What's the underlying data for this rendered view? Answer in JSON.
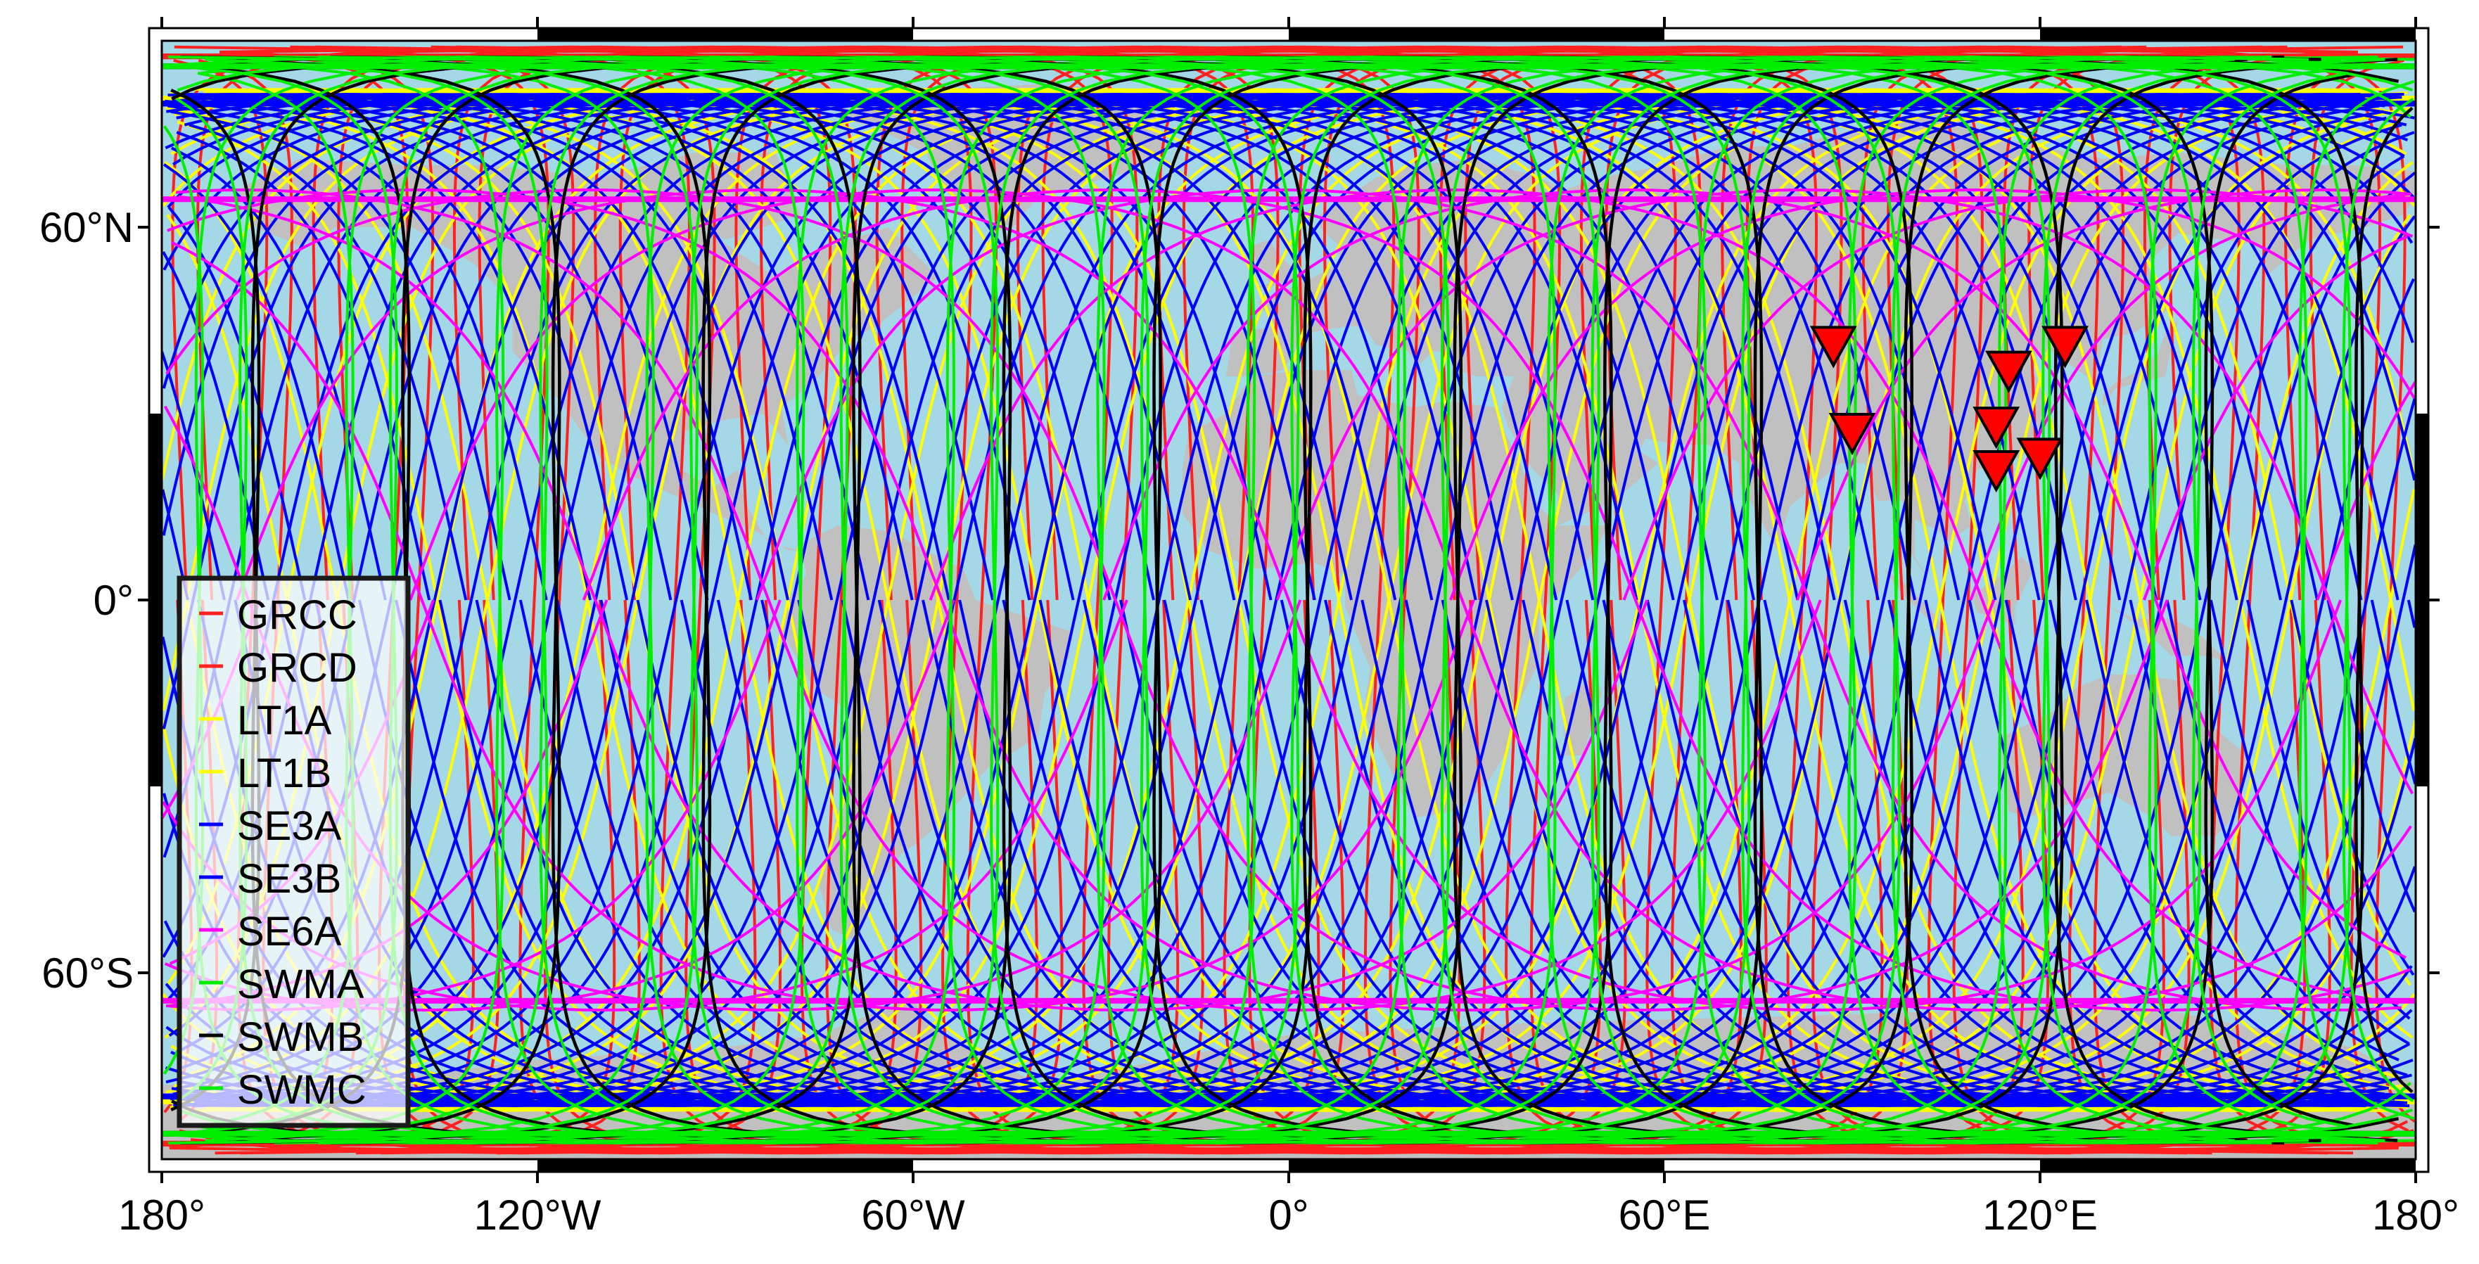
{
  "map": {
    "projection": "equirectangular",
    "lon_range": [
      -180,
      180
    ],
    "lat_range": [
      -90,
      90
    ],
    "ocean_color": "#a4d8e6",
    "land_color": "#c0c0c0",
    "frame_color": "#000000",
    "x_ticks": [
      {
        "lon": -180,
        "label": "180°"
      },
      {
        "lon": -120,
        "label": "120°W"
      },
      {
        "lon": -60,
        "label": "60°W"
      },
      {
        "lon": 0,
        "label": "0°"
      },
      {
        "lon": 60,
        "label": "60°E"
      },
      {
        "lon": 120,
        "label": "120°E"
      },
      {
        "lon": 180,
        "label": "180°"
      }
    ],
    "y_ticks": [
      {
        "lat": 60,
        "label": "60°N"
      },
      {
        "lat": 0,
        "label": "0°"
      },
      {
        "lat": -60,
        "label": "60°S"
      }
    ]
  },
  "legend": {
    "placement": "left",
    "items": [
      {
        "label": "GRCC",
        "color": "#ff2020"
      },
      {
        "label": "GRCD",
        "color": "#ff2020"
      },
      {
        "label": "LT1A",
        "color": "#ffff00"
      },
      {
        "label": "LT1B",
        "color": "#ffff00"
      },
      {
        "label": "SE3A",
        "color": "#0000ff"
      },
      {
        "label": "SE3B",
        "color": "#0000ff"
      },
      {
        "label": "SE6A",
        "color": "#ff00ff"
      },
      {
        "label": "SWMA",
        "color": "#00ee00"
      },
      {
        "label": "SWMB",
        "color": "#000000"
      },
      {
        "label": "SWMC",
        "color": "#00ee00"
      }
    ]
  },
  "chart_data": {
    "type": "map",
    "tracks": [
      {
        "name": "GRCC",
        "color": "#ff2020",
        "inclination": 89,
        "passes": 16,
        "lon_offset": -176
      },
      {
        "name": "GRCD",
        "color": "#ff2020",
        "inclination": 89,
        "passes": 16,
        "lon_offset": -172
      },
      {
        "name": "LT1A",
        "color": "#ffff00",
        "inclination": 97.8,
        "passes": 15,
        "lon_offset": -160
      },
      {
        "name": "LT1B",
        "color": "#ffff00",
        "inclination": 97.8,
        "passes": 15,
        "lon_offset": -152
      },
      {
        "name": "SE3A",
        "color": "#0000ff",
        "inclination": 98.6,
        "passes": 28,
        "lon_offset": -170
      },
      {
        "name": "SE3B",
        "color": "#0000ff",
        "inclination": 98.6,
        "passes": 28,
        "lon_offset": -163
      },
      {
        "name": "SE6A",
        "color": "#ff00ff",
        "inclination": 66,
        "passes": 13,
        "lon_offset": -168
      },
      {
        "name": "SWMA",
        "color": "#00ee00",
        "inclination": 87.4,
        "passes": 15,
        "lon_offset": -150
      },
      {
        "name": "SWMB",
        "color": "#000000",
        "inclination": 87.4,
        "passes": 15,
        "lon_offset": -165
      },
      {
        "name": "SWMC",
        "color": "#00ee00",
        "inclination": 87.4,
        "passes": 15,
        "lon_offset": -143
      }
    ],
    "markers": [
      {
        "lon": 87,
        "lat": 41,
        "color": "#ff0000"
      },
      {
        "lon": 90,
        "lat": 27,
        "color": "#ff0000"
      },
      {
        "lon": 115,
        "lat": 37,
        "color": "#ff0000"
      },
      {
        "lon": 113,
        "lat": 28,
        "color": "#ff0000"
      },
      {
        "lon": 113,
        "lat": 21,
        "color": "#ff0000"
      },
      {
        "lon": 120,
        "lat": 23,
        "color": "#ff0000"
      },
      {
        "lon": 124,
        "lat": 41,
        "color": "#ff0000"
      }
    ],
    "land": [
      [
        [
          -168,
          66
        ],
        [
          -158,
          71
        ],
        [
          -140,
          70
        ],
        [
          -128,
          70
        ],
        [
          -110,
          68
        ],
        [
          -95,
          72
        ],
        [
          -82,
          72
        ],
        [
          -78,
          62
        ],
        [
          -90,
          58
        ],
        [
          -94,
          60
        ],
        [
          -82,
          52
        ],
        [
          -76,
          56
        ],
        [
          -64,
          60
        ],
        [
          -56,
          52
        ],
        [
          -66,
          44
        ],
        [
          -70,
          42
        ],
        [
          -76,
          35
        ],
        [
          -81,
          31
        ],
        [
          -80,
          25
        ],
        [
          -84,
          30
        ],
        [
          -90,
          29
        ],
        [
          -97,
          27
        ],
        [
          -97,
          21
        ],
        [
          -92,
          18
        ],
        [
          -88,
          21
        ],
        [
          -87,
          16
        ],
        [
          -83,
          9
        ],
        [
          -78,
          8
        ],
        [
          -80,
          8
        ],
        [
          -85,
          11
        ],
        [
          -92,
          14
        ],
        [
          -105,
          20
        ],
        [
          -110,
          23
        ],
        [
          -115,
          30
        ],
        [
          -118,
          34
        ],
        [
          -124,
          40
        ],
        [
          -124,
          48
        ],
        [
          -130,
          54
        ],
        [
          -140,
          60
        ],
        [
          -152,
          60
        ],
        [
          -158,
          57
        ],
        [
          -165,
          60
        ]
      ],
      [
        [
          -73,
          78
        ],
        [
          -60,
          82
        ],
        [
          -40,
          83
        ],
        [
          -22,
          82
        ],
        [
          -20,
          72
        ],
        [
          -25,
          69
        ],
        [
          -40,
          65
        ],
        [
          -44,
          60
        ],
        [
          -50,
          62
        ],
        [
          -55,
          66
        ],
        [
          -58,
          72
        ],
        [
          -66,
          76
        ]
      ],
      [
        [
          -78,
          9
        ],
        [
          -72,
          12
        ],
        [
          -63,
          11
        ],
        [
          -60,
          9
        ],
        [
          -52,
          5
        ],
        [
          -50,
          0
        ],
        [
          -44,
          -2
        ],
        [
          -35,
          -5
        ],
        [
          -35,
          -9
        ],
        [
          -39,
          -15
        ],
        [
          -40,
          -22
        ],
        [
          -48,
          -27
        ],
        [
          -54,
          -34
        ],
        [
          -58,
          -38
        ],
        [
          -62,
          -41
        ],
        [
          -65,
          -45
        ],
        [
          -68,
          -51
        ],
        [
          -69,
          -55
        ],
        [
          -73,
          -53
        ],
        [
          -75,
          -46
        ],
        [
          -73,
          -38
        ],
        [
          -71,
          -30
        ],
        [
          -70,
          -18
        ],
        [
          -76,
          -14
        ],
        [
          -81,
          -5
        ],
        [
          -80,
          0
        ],
        [
          -77,
          4
        ]
      ],
      [
        [
          -10,
          36
        ],
        [
          -9,
          43
        ],
        [
          -2,
          44
        ],
        [
          -5,
          48
        ],
        [
          2,
          51
        ],
        [
          8,
          54
        ],
        [
          8,
          57
        ],
        [
          5,
          60
        ],
        [
          5,
          62
        ],
        [
          14,
          68
        ],
        [
          20,
          70
        ],
        [
          30,
          71
        ],
        [
          40,
          68
        ],
        [
          44,
          66
        ],
        [
          50,
          68
        ],
        [
          60,
          70
        ],
        [
          70,
          73
        ],
        [
          80,
          73
        ],
        [
          95,
          77
        ],
        [
          105,
          78
        ],
        [
          115,
          74
        ],
        [
          130,
          71
        ],
        [
          142,
          72
        ],
        [
          160,
          70
        ],
        [
          170,
          70
        ],
        [
          180,
          69
        ],
        [
          180,
          65
        ],
        [
          178,
          62
        ],
        [
          172,
          60
        ],
        [
          163,
          58
        ],
        [
          156,
          52
        ],
        [
          156,
          57
        ],
        [
          142,
          59
        ],
        [
          137,
          54
        ],
        [
          141,
          47
        ],
        [
          135,
          43
        ],
        [
          130,
          42
        ],
        [
          129,
          35
        ],
        [
          126,
          37
        ],
        [
          122,
          40
        ],
        [
          118,
          39
        ],
        [
          121,
          32
        ],
        [
          121,
          28
        ],
        [
          117,
          23
        ],
        [
          110,
          21
        ],
        [
          108,
          16
        ],
        [
          109,
          12
        ],
        [
          105,
          9
        ],
        [
          104,
          11
        ],
        [
          100,
          13
        ],
        [
          100,
          7
        ],
        [
          103,
          2
        ],
        [
          99,
          8
        ],
        [
          98,
          16
        ],
        [
          94,
          16
        ],
        [
          92,
          22
        ],
        [
          88,
          22
        ],
        [
          80,
          15
        ],
        [
          78,
          8
        ],
        [
          72,
          19
        ],
        [
          72,
          22
        ],
        [
          67,
          25
        ],
        [
          62,
          25
        ],
        [
          57,
          26
        ],
        [
          56,
          24
        ],
        [
          59,
          22
        ],
        [
          52,
          16
        ],
        [
          43,
          12
        ],
        [
          43,
          17
        ],
        [
          39,
          21
        ],
        [
          35,
          28
        ],
        [
          34,
          31
        ],
        [
          36,
          36
        ],
        [
          30,
          36
        ],
        [
          27,
          37
        ],
        [
          26,
          40
        ],
        [
          23,
          40
        ],
        [
          21,
          38
        ],
        [
          19,
          40
        ],
        [
          14,
          41
        ],
        [
          12,
          44
        ],
        [
          9,
          44
        ],
        [
          3,
          43
        ],
        [
          -1,
          37
        ],
        [
          -6,
          36
        ]
      ],
      [
        [
          -17,
          21
        ],
        [
          -16,
          27
        ],
        [
          -10,
          30
        ],
        [
          -6,
          36
        ],
        [
          2,
          37
        ],
        [
          10,
          37
        ],
        [
          11,
          33
        ],
        [
          20,
          31
        ],
        [
          25,
          32
        ],
        [
          33,
          31
        ],
        [
          34,
          28
        ],
        [
          37,
          22
        ],
        [
          39,
          16
        ],
        [
          43,
          12
        ],
        [
          51,
          12
        ],
        [
          49,
          8
        ],
        [
          44,
          2
        ],
        [
          40,
          -2
        ],
        [
          40,
          -10
        ],
        [
          36,
          -18
        ],
        [
          35,
          -24
        ],
        [
          32,
          -29
        ],
        [
          27,
          -34
        ],
        [
          20,
          -35
        ],
        [
          17,
          -29
        ],
        [
          12,
          -18
        ],
        [
          13,
          -11
        ],
        [
          9,
          -1
        ],
        [
          9,
          4
        ],
        [
          4,
          6
        ],
        [
          -5,
          5
        ],
        [
          -13,
          8
        ],
        [
          -17,
          14
        ]
      ],
      [
        [
          44,
          -25
        ],
        [
          47,
          -25
        ],
        [
          50,
          -15
        ],
        [
          49,
          -12
        ],
        [
          44,
          -16
        ]
      ],
      [
        [
          114,
          -22
        ],
        [
          114,
          -26
        ],
        [
          115,
          -34
        ],
        [
          118,
          -35
        ],
        [
          124,
          -33
        ],
        [
          131,
          -31
        ],
        [
          138,
          -35
        ],
        [
          141,
          -38
        ],
        [
          148,
          -38
        ],
        [
          150,
          -36
        ],
        [
          153,
          -28
        ],
        [
          153,
          -25
        ],
        [
          146,
          -19
        ],
        [
          143,
          -11
        ],
        [
          142,
          -13
        ],
        [
          136,
          -12
        ],
        [
          131,
          -12
        ],
        [
          126,
          -14
        ],
        [
          122,
          -18
        ]
      ],
      [
        [
          -180,
          -78
        ],
        [
          -150,
          -78
        ],
        [
          -120,
          -74
        ],
        [
          -90,
          -72
        ],
        [
          -75,
          -70
        ],
        [
          -60,
          -64
        ],
        [
          -58,
          -68
        ],
        [
          -40,
          -78
        ],
        [
          0,
          -70
        ],
        [
          40,
          -68
        ],
        [
          80,
          -67
        ],
        [
          110,
          -66
        ],
        [
          140,
          -66
        ],
        [
          170,
          -72
        ],
        [
          180,
          -78
        ],
        [
          180,
          -90
        ],
        [
          -180,
          -90
        ]
      ],
      [
        [
          -6,
          50
        ],
        [
          0,
          51
        ],
        [
          1,
          53
        ],
        [
          -2,
          56
        ],
        [
          -3,
          58
        ],
        [
          -6,
          57
        ],
        [
          -5,
          54
        ],
        [
          -3,
          51
        ]
      ],
      [
        [
          130,
          31
        ],
        [
          132,
          34
        ],
        [
          136,
          35
        ],
        [
          140,
          36
        ],
        [
          141,
          41
        ],
        [
          142,
          45
        ],
        [
          140,
          43
        ],
        [
          139,
          40
        ],
        [
          136,
          37
        ],
        [
          132,
          35
        ],
        [
          130,
          33
        ]
      ],
      [
        [
          95,
          5
        ],
        [
          98,
          3
        ],
        [
          102,
          -1
        ],
        [
          106,
          -6
        ],
        [
          104,
          -5
        ],
        [
          101,
          -2
        ],
        [
          98,
          1
        ]
      ],
      [
        [
          109,
          1
        ],
        [
          111,
          2
        ],
        [
          114,
          4
        ],
        [
          117,
          7
        ],
        [
          119,
          5
        ],
        [
          116,
          -1
        ],
        [
          116,
          -4
        ],
        [
          113,
          -3
        ],
        [
          110,
          -2
        ]
      ],
      [
        [
          131,
          -1
        ],
        [
          135,
          -3
        ],
        [
          141,
          -3
        ],
        [
          145,
          -5
        ],
        [
          150,
          -10
        ],
        [
          147,
          -9
        ],
        [
          141,
          -9
        ],
        [
          137,
          -5
        ]
      ]
    ]
  }
}
